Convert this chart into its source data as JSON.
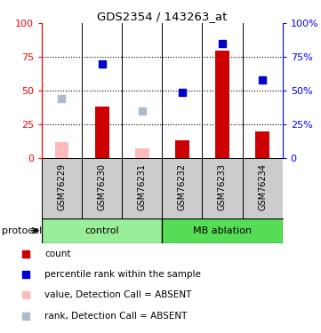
{
  "title": "GDS2354 / 143263_at",
  "samples": [
    "GSM76229",
    "GSM76230",
    "GSM76231",
    "GSM76232",
    "GSM76233",
    "GSM76234"
  ],
  "bar_color_present": "#cc0000",
  "bar_color_absent": "#ffbbbb",
  "dot_color_present": "#0000cc",
  "dot_color_absent": "#aabbcc",
  "count_values": [
    0,
    38,
    0,
    13,
    80,
    20
  ],
  "count_absent": [
    true,
    false,
    true,
    false,
    false,
    false
  ],
  "absent_count_values": [
    12,
    0,
    7,
    0,
    0,
    0
  ],
  "rank_values": [
    44,
    70,
    35,
    49,
    85,
    58
  ],
  "rank_absent": [
    true,
    false,
    true,
    false,
    false,
    false
  ],
  "yticks": [
    0,
    25,
    50,
    75,
    100
  ],
  "legend_items": [
    {
      "label": "count",
      "color": "#cc0000"
    },
    {
      "label": "percentile rank within the sample",
      "color": "#0000cc"
    },
    {
      "label": "value, Detection Call = ABSENT",
      "color": "#ffbbbb"
    },
    {
      "label": "rank, Detection Call = ABSENT",
      "color": "#aabbcc"
    }
  ],
  "groups": [
    {
      "label": "control",
      "start": 0,
      "end": 3,
      "color": "#99ee99"
    },
    {
      "label": "MB ablation",
      "start": 3,
      "end": 6,
      "color": "#55dd55"
    }
  ],
  "protocol_label": "protocol",
  "gray_bg": "#cccccc",
  "plot_bg": "#ffffff"
}
